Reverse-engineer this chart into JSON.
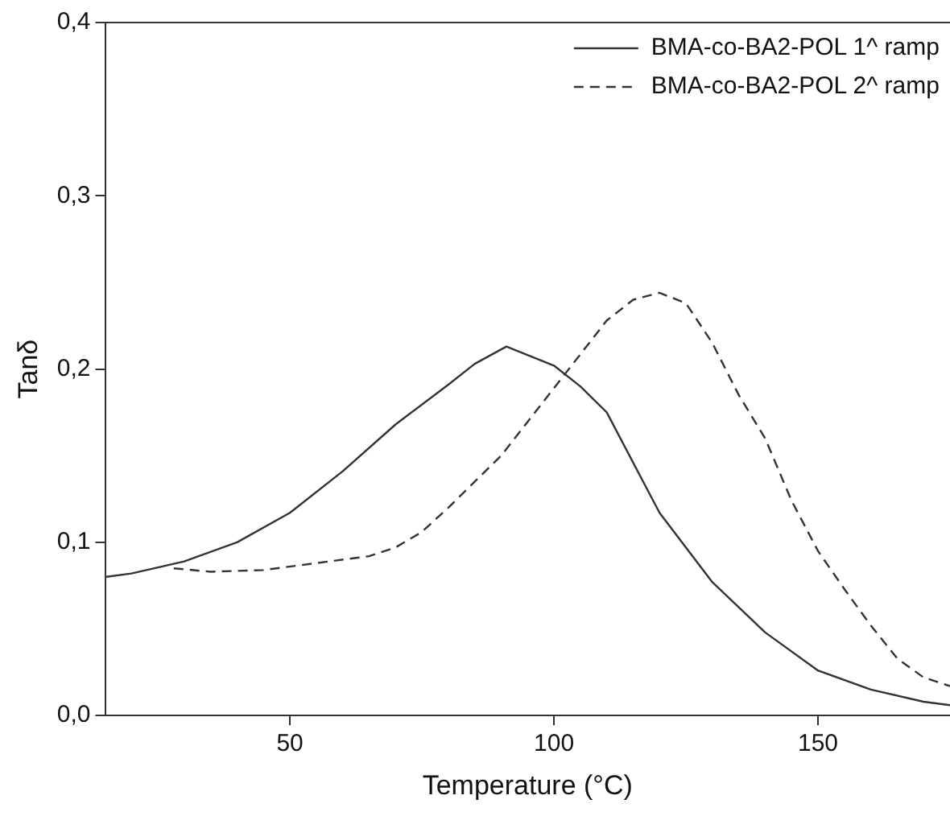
{
  "chart_data": {
    "type": "line",
    "xlabel": "Temperature (°C)",
    "ylabel": "Tanδ",
    "legend": "top right",
    "grid": false,
    "marker": "none",
    "xlim": [
      15,
      175
    ],
    "xticks": [
      50,
      100,
      150
    ],
    "ylim": [
      0,
      0.4
    ],
    "yticks": [
      {
        "value": 0,
        "label": "0,0"
      },
      {
        "value": 0.1,
        "label": "0,1"
      },
      {
        "value": 0.2,
        "label": "0,2"
      },
      {
        "value": 0.3,
        "label": "0,3"
      },
      {
        "value": 0.4,
        "label": "0,4"
      }
    ],
    "series": [
      {
        "name": "BMA-co-BA2-POL 1^ ramp",
        "color": "#333333",
        "line_style": "solid",
        "x": [
          15,
          20,
          30,
          40,
          50,
          60,
          70,
          80,
          85,
          91,
          100,
          105,
          110,
          120,
          130,
          140,
          150,
          160,
          170,
          175
        ],
        "values": [
          0.08,
          0.082,
          0.089,
          0.1,
          0.117,
          0.141,
          0.168,
          0.191,
          0.203,
          0.213,
          0.202,
          0.19,
          0.175,
          0.117,
          0.077,
          0.048,
          0.026,
          0.015,
          0.008,
          0.006
        ]
      },
      {
        "name": "BMA-co-BA2-POL 2^ ramp",
        "color": "#333333",
        "line_style": "dashed",
        "x": [
          28,
          35,
          45,
          55,
          65,
          70,
          75,
          80,
          90,
          100,
          110,
          115,
          120,
          125,
          130,
          135,
          140,
          145,
          150,
          155,
          160,
          165,
          170,
          175
        ],
        "values": [
          0.085,
          0.083,
          0.084,
          0.088,
          0.092,
          0.097,
          0.106,
          0.12,
          0.15,
          0.189,
          0.228,
          0.24,
          0.244,
          0.238,
          0.215,
          0.185,
          0.16,
          0.124,
          0.095,
          0.073,
          0.052,
          0.033,
          0.022,
          0.017
        ]
      }
    ]
  }
}
